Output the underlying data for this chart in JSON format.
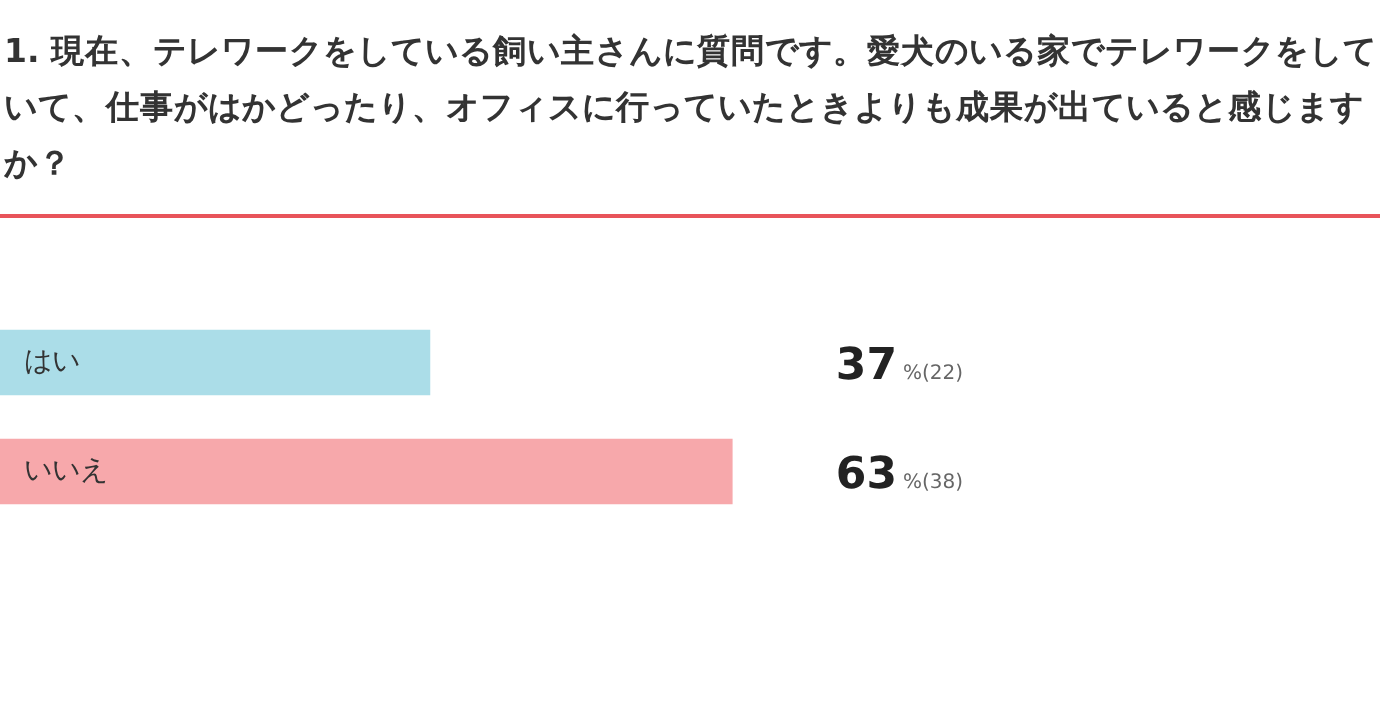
{
  "chart_data": {
    "type": "bar",
    "orientation": "horizontal",
    "title": "1. 現在、テレワークをしている飼い主さんに質問です。愛犬のいる家でテレワークをしていて、仕事がはかどったり、オフィスに行っていたときよりも成果が出ていると感じますか？",
    "categories": [
      "はい",
      "いいえ"
    ],
    "values": [
      37,
      63
    ],
    "colors": [
      "#abdde8",
      "#f7a8ab"
    ],
    "value_labels": [
      "37%(22)",
      "63%(38)"
    ],
    "tick_labels": "y"
  }
}
